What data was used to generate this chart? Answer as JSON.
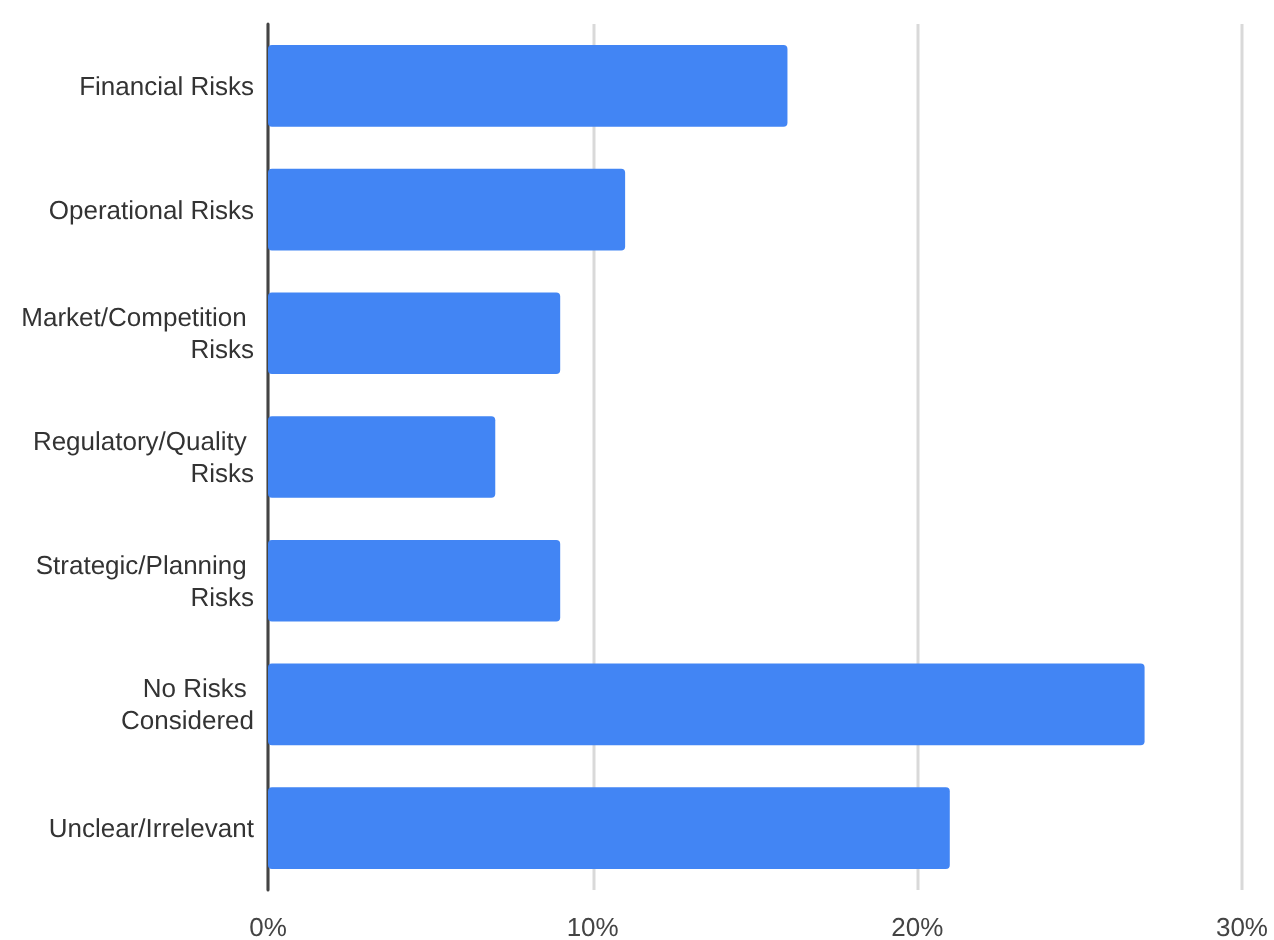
{
  "chart_data": {
    "type": "bar",
    "orientation": "horizontal",
    "categories": [
      "Financial Risks",
      "Operational Risks",
      "Market/Competition Risks",
      "Regulatory/Quality Risks",
      "Strategic/Planning Risks",
      "No Risks Considered",
      "Unclear/Irrelevant"
    ],
    "values": [
      16,
      11,
      9,
      7,
      9,
      27,
      21
    ],
    "color": "#4285f4",
    "xlim": [
      0,
      30
    ],
    "xticks": [
      {
        "value": 0,
        "label": "0%"
      },
      {
        "value": 10,
        "label": "10%"
      },
      {
        "value": 20,
        "label": "20%"
      },
      {
        "value": 30,
        "label": "30%"
      }
    ],
    "grid": "x"
  }
}
